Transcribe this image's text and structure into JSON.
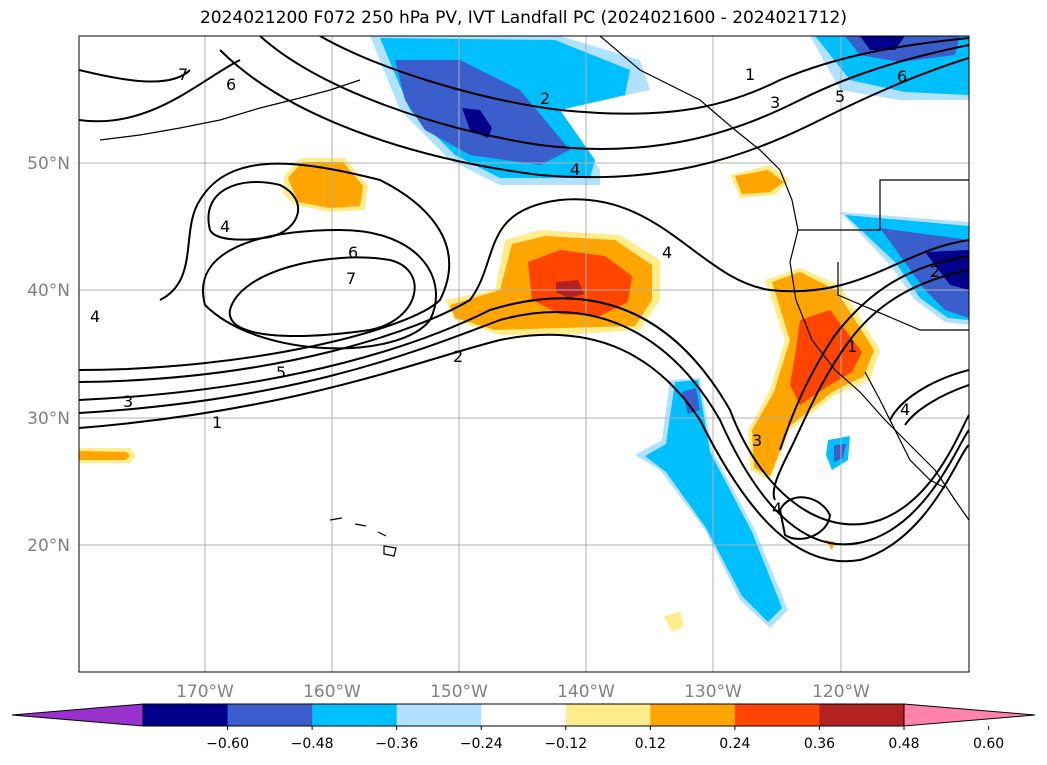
{
  "title": "2024021200 F072 250 hPa PV, IVT Landfall PC (2024021600 - 2024021712)",
  "map": {
    "lat_labels": [
      "50°N",
      "40°N",
      "30°N",
      "20°N"
    ],
    "lon_labels": [
      "170°W",
      "160°W",
      "150°W",
      "140°W",
      "130°W",
      "120°W"
    ],
    "grid": true
  },
  "contour_labels": [
    "7",
    "6",
    "4",
    "6",
    "7",
    "5",
    "3",
    "1",
    "4",
    "2",
    "4",
    "2",
    "4",
    "1",
    "3",
    "5",
    "6",
    "1",
    "3",
    "4",
    "4",
    "2"
  ],
  "colorbar": {
    "ticks": [
      "−0.60",
      "−0.48",
      "−0.36",
      "−0.24",
      "−0.12",
      "0.12",
      "0.24",
      "0.36",
      "0.48",
      "0.60"
    ],
    "colors": [
      "#9932cc",
      "#00008b",
      "#3a5fcd",
      "#00bfff",
      "#b0e2ff",
      "#ffffff",
      "#ffec8b",
      "#ffa500",
      "#ff4500",
      "#b22222",
      "#ff82ab"
    ]
  }
}
